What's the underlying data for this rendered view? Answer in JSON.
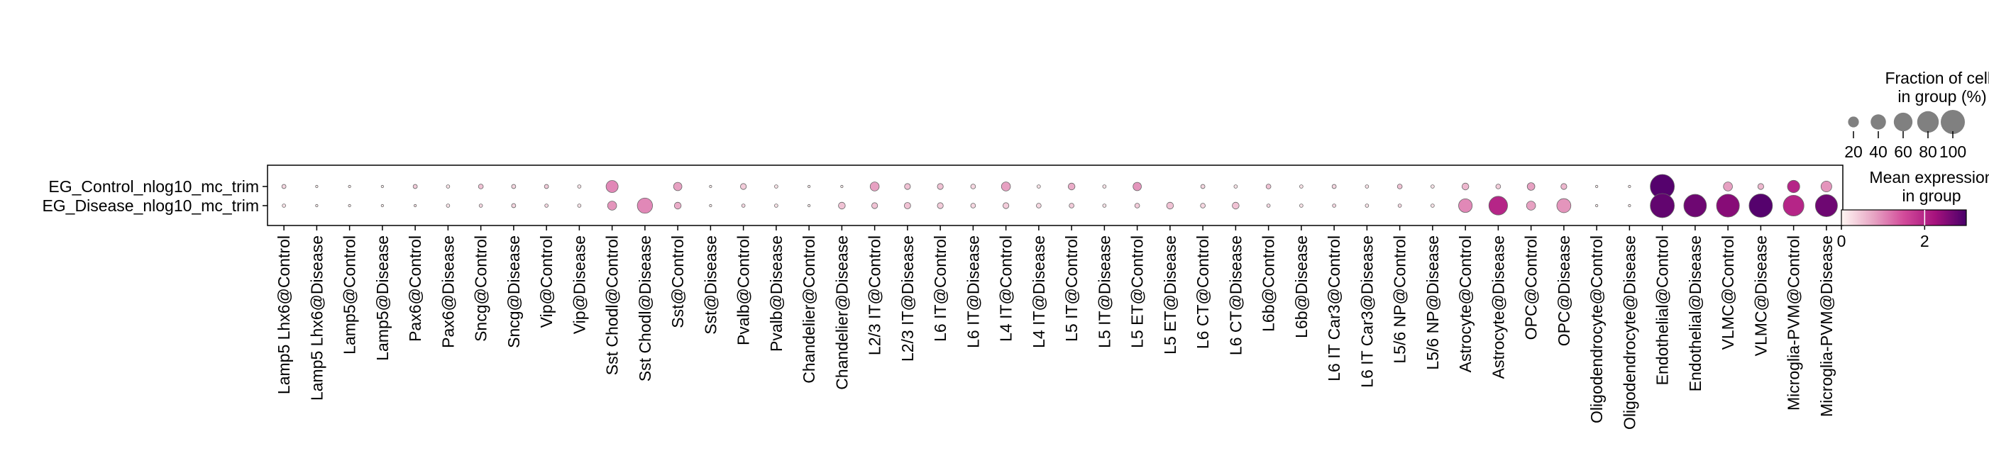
{
  "chart_data": {
    "type": "dotplot",
    "rows": [
      "EG_Control_nlog10_mc_trim",
      "EG_Disease_nlog10_mc_trim"
    ],
    "columns": [
      "Lamp5 Lhx6@Control",
      "Lamp5 Lhx6@Disease",
      "Lamp5@Control",
      "Lamp5@Disease",
      "Pax6@Control",
      "Pax6@Disease",
      "Sncg@Control",
      "Sncg@Disease",
      "Vip@Control",
      "Vip@Disease",
      "Sst Chodl@Control",
      "Sst Chodl@Disease",
      "Sst@Control",
      "Sst@Disease",
      "Pvalb@Control",
      "Pvalb@Disease",
      "Chandelier@Control",
      "Chandelier@Disease",
      "L2/3 IT@Control",
      "L2/3 IT@Disease",
      "L6 IT@Control",
      "L6 IT@Disease",
      "L4 IT@Control",
      "L4 IT@Disease",
      "L5 IT@Control",
      "L5 IT@Disease",
      "L5 ET@Control",
      "L5 ET@Disease",
      "L6 CT@Control",
      "L6 CT@Disease",
      "L6b@Control",
      "L6b@Disease",
      "L6 IT Car3@Control",
      "L6 IT Car3@Disease",
      "L5/6 NP@Control",
      "L5/6 NP@Disease",
      "Astrocyte@Control",
      "Astrocyte@Disease",
      "OPC@Control",
      "OPC@Disease",
      "Oligodendrocyte@Control",
      "Oligodendrocyte@Disease",
      "Endothelial@Control",
      "Endothelial@Disease",
      "VLMC@Control",
      "VLMC@Disease",
      "Microglia-PVM@Control",
      "Microglia-PVM@Disease"
    ],
    "fraction_pct": [
      [
        3,
        1,
        1,
        1,
        3,
        2,
        4,
        3,
        3,
        2,
        25,
        0,
        12,
        1,
        6,
        2,
        1,
        1,
        14,
        6,
        6,
        4,
        14,
        2,
        8,
        2,
        12,
        0,
        3,
        2,
        4,
        2,
        3,
        2,
        4,
        2,
        8,
        4,
        10,
        6,
        1,
        1,
        100,
        0,
        14,
        6,
        26,
        20
      ],
      [
        2,
        1,
        1,
        1,
        1,
        2,
        2,
        3,
        2,
        2,
        14,
        40,
        8,
        1,
        2,
        2,
        1,
        8,
        6,
        7,
        6,
        4,
        6,
        4,
        4,
        2,
        4,
        8,
        4,
        8,
        2,
        2,
        2,
        2,
        2,
        2,
        32,
        60,
        14,
        34,
        1,
        1,
        100,
        88,
        90,
        94,
        74,
        84
      ]
    ],
    "mean_expression": [
      [
        0.3,
        0.1,
        0.1,
        0.1,
        0.4,
        0.2,
        0.5,
        0.3,
        0.4,
        0.2,
        1.0,
        0.0,
        0.8,
        0.1,
        0.4,
        0.2,
        0.1,
        0.1,
        0.8,
        0.5,
        0.5,
        0.3,
        0.8,
        0.2,
        0.7,
        0.2,
        0.9,
        0.0,
        0.3,
        0.2,
        0.5,
        0.2,
        0.3,
        0.2,
        0.5,
        0.2,
        0.6,
        0.4,
        0.8,
        0.6,
        0.1,
        0.1,
        2.9,
        0.0,
        0.8,
        0.6,
        2.0,
        0.9
      ],
      [
        0.2,
        0.1,
        0.1,
        0.1,
        0.2,
        0.2,
        0.3,
        0.3,
        0.3,
        0.2,
        0.9,
        1.0,
        0.7,
        0.1,
        0.3,
        0.2,
        0.1,
        0.5,
        0.5,
        0.5,
        0.4,
        0.3,
        0.4,
        0.3,
        0.4,
        0.2,
        0.4,
        0.5,
        0.3,
        0.5,
        0.3,
        0.2,
        0.3,
        0.2,
        0.3,
        0.2,
        1.0,
        2.0,
        0.8,
        0.9,
        0.1,
        0.1,
        2.8,
        2.7,
        2.5,
        2.9,
        2.0,
        2.7
      ]
    ],
    "size_legend": {
      "title_line1": "Fraction of cells",
      "title_line2": "in group (%)",
      "values": [
        20,
        40,
        60,
        80,
        100
      ],
      "labels": [
        "20",
        "40",
        "60",
        "80",
        "100"
      ]
    },
    "color_legend": {
      "title_line1": "Mean expression",
      "title_line2": "in group",
      "vmin": 0,
      "vmax": 3,
      "tick_values": [
        0,
        2
      ],
      "tick_labels": [
        "0",
        "2"
      ],
      "colors": [
        "#fff7f3",
        "#e8a7c5",
        "#d24b9a",
        "#a6127d",
        "#49006a"
      ]
    }
  }
}
